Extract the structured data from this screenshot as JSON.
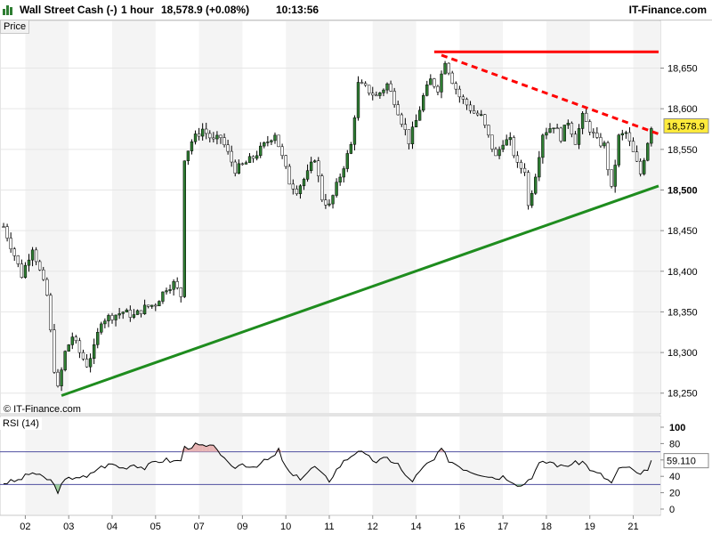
{
  "header": {
    "instrument": "Wall Street Cash (-)",
    "timeframe": "1 hour",
    "price_change": "18,578.9 (+0.08%)",
    "time": "10:13:56",
    "brand": "IT-Finance.com",
    "logo_icon": "bar-chart-logo-icon"
  },
  "panels": {
    "price_label": "Price",
    "rsi_label": "RSI (14)",
    "watermark": "© IT-Finance.com",
    "last_price_label": "18,578.9",
    "last_rsi_label": "59.110"
  },
  "colors": {
    "up_candle": "#2e7d32",
    "down_candle": "#000000",
    "resistance": "#ff0000",
    "support": "#1e8c1e",
    "rsi_line": "#000000",
    "rsi_bands": "#5050a0",
    "overbought_fill": "#e8b4b4",
    "oversold_fill": "#a0d0a0",
    "last_price_bg": "#ffeb3b"
  },
  "chart_data": [
    {
      "type": "candlestick",
      "title": "Price",
      "ylim": [
        18230,
        18690
      ],
      "yticks": [
        "18,250",
        "18,300",
        "18,350",
        "18,400",
        "18,450",
        "18,500",
        "18,550",
        "18,600",
        "18,650"
      ],
      "ytick_values": [
        18250,
        18300,
        18350,
        18400,
        18450,
        18500,
        18550,
        18600,
        18650
      ],
      "xticks": [
        "02",
        "03",
        "04",
        "05",
        "07",
        "09",
        "10",
        "11",
        "12",
        "14",
        "16",
        "17",
        "18",
        "19",
        "21"
      ],
      "xtick_index": [
        6,
        18,
        30,
        42,
        54,
        66,
        78,
        90,
        102,
        114,
        126,
        138,
        150,
        162,
        174
      ],
      "bars_count": 180,
      "close_path": [
        [
          0,
          18455
        ],
        [
          3,
          18420
        ],
        [
          5,
          18395
        ],
        [
          8,
          18430
        ],
        [
          10,
          18400
        ],
        [
          12,
          18370
        ],
        [
          14,
          18280
        ],
        [
          15,
          18255
        ],
        [
          17,
          18300
        ],
        [
          19,
          18320
        ],
        [
          21,
          18300
        ],
        [
          23,
          18285
        ],
        [
          25,
          18305
        ],
        [
          27,
          18340
        ],
        [
          30,
          18345
        ],
        [
          33,
          18350
        ],
        [
          36,
          18345
        ],
        [
          39,
          18355
        ],
        [
          42,
          18360
        ],
        [
          45,
          18380
        ],
        [
          47,
          18385
        ],
        [
          49,
          18370
        ],
        [
          50,
          18540
        ],
        [
          52,
          18560
        ],
        [
          55,
          18575
        ],
        [
          58,
          18560
        ],
        [
          60,
          18565
        ],
        [
          62,
          18545
        ],
        [
          64,
          18525
        ],
        [
          66,
          18530
        ],
        [
          69,
          18540
        ],
        [
          72,
          18555
        ],
        [
          75,
          18570
        ],
        [
          77,
          18540
        ],
        [
          79,
          18510
        ],
        [
          81,
          18500
        ],
        [
          84,
          18520
        ],
        [
          86,
          18540
        ],
        [
          88,
          18490
        ],
        [
          90,
          18480
        ],
        [
          92,
          18505
        ],
        [
          94,
          18530
        ],
        [
          96,
          18555
        ],
        [
          98,
          18630
        ],
        [
          100,
          18625
        ],
        [
          103,
          18615
        ],
        [
          106,
          18630
        ],
        [
          108,
          18610
        ],
        [
          110,
          18585
        ],
        [
          112,
          18560
        ],
        [
          114,
          18585
        ],
        [
          116,
          18615
        ],
        [
          118,
          18635
        ],
        [
          120,
          18625
        ],
        [
          122,
          18660
        ],
        [
          124,
          18635
        ],
        [
          126,
          18615
        ],
        [
          128,
          18605
        ],
        [
          130,
          18595
        ],
        [
          132,
          18590
        ],
        [
          134,
          18565
        ],
        [
          136,
          18540
        ],
        [
          138,
          18560
        ],
        [
          140,
          18560
        ],
        [
          142,
          18530
        ],
        [
          144,
          18525
        ],
        [
          145,
          18480
        ],
        [
          147,
          18520
        ],
        [
          149,
          18570
        ],
        [
          152,
          18580
        ],
        [
          154,
          18565
        ],
        [
          156,
          18585
        ],
        [
          158,
          18560
        ],
        [
          160,
          18590
        ],
        [
          162,
          18575
        ],
        [
          164,
          18560
        ],
        [
          166,
          18555
        ],
        [
          168,
          18500
        ],
        [
          170,
          18565
        ],
        [
          172,
          18570
        ],
        [
          174,
          18545
        ],
        [
          176,
          18520
        ],
        [
          178,
          18560
        ],
        [
          179,
          18578.9
        ]
      ],
      "last_price": 18578.9,
      "trendlines": [
        {
          "name": "resistance-horizontal",
          "style": "solid",
          "x": [
            119,
            181
          ],
          "y": [
            18670,
            18670
          ]
        },
        {
          "name": "resistance-descending",
          "style": "dashed",
          "x": [
            121,
            181
          ],
          "y": [
            18666,
            18569
          ]
        },
        {
          "name": "support-ascending",
          "style": "solid",
          "x": [
            16,
            181
          ],
          "y": [
            18247,
            18505
          ]
        }
      ]
    },
    {
      "type": "line",
      "title": "RSI (14)",
      "ylim": [
        0,
        100
      ],
      "yticks": [
        "0",
        "20",
        "40",
        "60",
        "80",
        "100"
      ],
      "ytick_values": [
        0,
        20,
        40,
        60,
        80,
        100
      ],
      "bands": [
        30,
        70
      ],
      "last_value": 59.11,
      "rsi_path": [
        [
          0,
          32
        ],
        [
          4,
          35
        ],
        [
          8,
          45
        ],
        [
          10,
          40
        ],
        [
          13,
          35
        ],
        [
          15,
          22
        ],
        [
          17,
          35
        ],
        [
          20,
          40
        ],
        [
          23,
          38
        ],
        [
          26,
          50
        ],
        [
          30,
          55
        ],
        [
          33,
          50
        ],
        [
          36,
          55
        ],
        [
          39,
          50
        ],
        [
          42,
          58
        ],
        [
          45,
          60
        ],
        [
          47,
          58
        ],
        [
          49,
          60
        ],
        [
          50,
          75
        ],
        [
          53,
          78
        ],
        [
          56,
          76
        ],
        [
          59,
          75
        ],
        [
          61,
          60
        ],
        [
          63,
          50
        ],
        [
          66,
          55
        ],
        [
          69,
          52
        ],
        [
          72,
          58
        ],
        [
          75,
          65
        ],
        [
          76,
          72
        ],
        [
          78,
          50
        ],
        [
          80,
          40
        ],
        [
          82,
          38
        ],
        [
          84,
          45
        ],
        [
          86,
          52
        ],
        [
          88,
          42
        ],
        [
          90,
          35
        ],
        [
          92,
          48
        ],
        [
          94,
          58
        ],
        [
          96,
          65
        ],
        [
          98,
          72
        ],
        [
          100,
          65
        ],
        [
          103,
          58
        ],
        [
          106,
          62
        ],
        [
          109,
          55
        ],
        [
          111,
          40
        ],
        [
          113,
          35
        ],
        [
          115,
          45
        ],
        [
          117,
          55
        ],
        [
          119,
          60
        ],
        [
          121,
          73
        ],
        [
          123,
          60
        ],
        [
          125,
          55
        ],
        [
          127,
          50
        ],
        [
          130,
          45
        ],
        [
          133,
          42
        ],
        [
          136,
          38
        ],
        [
          138,
          40
        ],
        [
          140,
          36
        ],
        [
          143,
          28
        ],
        [
          146,
          40
        ],
        [
          148,
          55
        ],
        [
          151,
          58
        ],
        [
          154,
          52
        ],
        [
          157,
          55
        ],
        [
          160,
          58
        ],
        [
          163,
          45
        ],
        [
          165,
          42
        ],
        [
          168,
          32
        ],
        [
          170,
          48
        ],
        [
          172,
          52
        ],
        [
          174,
          47
        ],
        [
          176,
          40
        ],
        [
          178,
          50
        ],
        [
          179,
          59.11
        ]
      ]
    }
  ]
}
